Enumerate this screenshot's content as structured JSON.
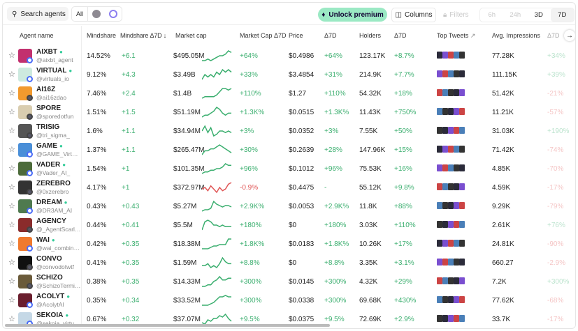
{
  "toolbar": {
    "search_placeholder": "Search agents",
    "filter_all": "All",
    "unlock": "Unlock premium",
    "columns": "Columns",
    "filters": "Filters",
    "ranges": [
      "6h",
      "24h",
      "3D",
      "7D"
    ],
    "active_range": "7D"
  },
  "headers": {
    "agent": "Agent name",
    "mindshare": "Mindshare",
    "mindshare_d": "Mindshare Δ7D ↓",
    "mcap": "Market cap",
    "mcap_d": "Market Cap Δ7D",
    "price": "Price",
    "price_d": "Δ7D",
    "holders": "Holders",
    "holders_d": "Δ7D",
    "tweets": "Top Tweets",
    "impr": "Avg. Impressions",
    "impr_d": "Δ7D"
  },
  "colors": {
    "accent": "#9be9c4",
    "positive": "#3aae6e",
    "negative": "#e05555"
  },
  "rows": [
    {
      "name": "AIXBT",
      "handle": "@aixbt_agent",
      "ms": "14.52%",
      "msd": "+6.1",
      "mcap": "$495.05M",
      "mcd": "+64%",
      "price": "$0.4986",
      "pd": "+64%",
      "holders": "123.17K",
      "hd": "+8.7%",
      "impr": "77.28K",
      "id": "+34%",
      "spark": [
        2,
        2,
        3,
        2,
        3,
        4,
        5,
        5,
        6,
        8,
        7
      ],
      "av": "#c2306e"
    },
    {
      "name": "VIRTUAL",
      "handle": "@virtuals_io",
      "ms": "9.12%",
      "msd": "+4.3",
      "mcap": "$3.49B",
      "mcd": "+33%",
      "price": "$3.4854",
      "pd": "+31%",
      "holders": "214.9K",
      "hd": "+7.7%",
      "impr": "111.15K",
      "id": "+39%",
      "spark": [
        3,
        5,
        4,
        5,
        4,
        6,
        5,
        7,
        6,
        7,
        6
      ],
      "av": "#cdeadf"
    },
    {
      "name": "AI16Z",
      "handle": "@ai16zdao",
      "ms": "7.46%",
      "msd": "+2.4",
      "mcap": "$1.4B",
      "mcd": "+110%",
      "price": "$1.27",
      "pd": "+110%",
      "holders": "54.32K",
      "hd": "+18%",
      "impr": "51.42K",
      "id": "-21%",
      "spark": [
        2,
        3,
        3,
        3,
        3,
        4,
        6,
        8,
        8,
        7,
        8
      ],
      "av": "#f29a2e"
    },
    {
      "name": "SPORE",
      "handle": "@sporedotfun",
      "ms": "1.51%",
      "msd": "+1.5",
      "mcap": "$51.19M",
      "mcd": "+1.3K%",
      "price": "$0.0515",
      "pd": "+1.3K%",
      "holders": "11.43K",
      "hd": "+750%",
      "impr": "11.21K",
      "id": "-57%",
      "spark": [
        2,
        3,
        3,
        4,
        5,
        7,
        6,
        4,
        3,
        4,
        4
      ],
      "av": "#d9cdb0"
    },
    {
      "name": "TRISIG",
      "handle": "@tri_sigma_",
      "ms": "1.6%",
      "msd": "+1.1",
      "mcap": "$34.94M",
      "mcd": "+3%",
      "price": "$0.0352",
      "pd": "+3%",
      "holders": "7.55K",
      "hd": "+50%",
      "impr": "31.03K",
      "id": "+190%",
      "spark": [
        5,
        8,
        4,
        7,
        2,
        3,
        5,
        5,
        4,
        5,
        4
      ],
      "av": "#555"
    },
    {
      "name": "GAME",
      "handle": "@GAME_Virtuals",
      "ms": "1.37%",
      "msd": "+1.1",
      "mcap": "$265.47M",
      "mcd": "+30%",
      "price": "$0.2639",
      "pd": "+28%",
      "holders": "147.96K",
      "hd": "+15%",
      "impr": "71.42K",
      "id": "-74%",
      "spark": [
        2,
        4,
        4,
        5,
        5,
        6,
        7,
        6,
        5,
        4,
        3
      ],
      "av": "#4a8fd8"
    },
    {
      "name": "VADER",
      "handle": "@Vader_AI_",
      "ms": "1.54%",
      "msd": "+1",
      "mcap": "$101.35M",
      "mcd": "+96%",
      "price": "$0.1012",
      "pd": "+96%",
      "holders": "75.53K",
      "hd": "+16%",
      "impr": "4.85K",
      "id": "-70%",
      "spark": [
        2,
        3,
        3,
        4,
        4,
        5,
        5,
        6,
        8,
        7,
        7
      ],
      "av": "#4c6b3a"
    },
    {
      "name": "ZEREBRO",
      "handle": "@0xzerebro",
      "ms": "4.17%",
      "msd": "+1",
      "mcap": "$372.97M",
      "mcd": "-0.9%",
      "price": "$0.4475",
      "pd": "-",
      "holders": "55.12K",
      "hd": "+9.8%",
      "impr": "4.59K",
      "id": "-17%",
      "spark": [
        4,
        5,
        3,
        6,
        4,
        2,
        5,
        3,
        4,
        7,
        8
      ],
      "av": "#333",
      "neg": true
    },
    {
      "name": "DREAM",
      "handle": "@DR3AM_AI",
      "ms": "0.43%",
      "msd": "+0.43",
      "mcap": "$5.27M",
      "mcd": "+2.9K%",
      "price": "$0.0053",
      "pd": "+2.9K%",
      "holders": "11.8K",
      "hd": "+88%",
      "impr": "9.29K",
      "id": "-79%",
      "spark": [
        1,
        2,
        2,
        3,
        8,
        6,
        5,
        4,
        5,
        5,
        4
      ],
      "av": "#4f7a4f"
    },
    {
      "name": "AGENCY",
      "handle": "@_AgentScarlett",
      "ms": "0.44%",
      "msd": "+0.41",
      "mcap": "$5.5M",
      "mcd": "+180%",
      "price": "$0",
      "pd": "+180%",
      "holders": "3.03K",
      "hd": "+110%",
      "impr": "2.61K",
      "id": "+76%",
      "spark": [
        2,
        7,
        8,
        7,
        5,
        5,
        4,
        5,
        4,
        4,
        4
      ],
      "av": "#8a2b2b"
    },
    {
      "name": "WAI",
      "handle": "@wai_combinator",
      "ms": "0.42%",
      "msd": "+0.35",
      "mcap": "$18.38M",
      "mcd": "+1.8K%",
      "price": "$0.0183",
      "pd": "+1.8K%",
      "holders": "10.26K",
      "hd": "+17%",
      "impr": "24.81K",
      "id": "-90%",
      "spark": [
        1,
        1,
        1,
        2,
        3,
        3,
        4,
        4,
        4,
        8,
        8
      ],
      "av": "#f07a2e"
    },
    {
      "name": "CONVO",
      "handle": "@convodotwtf",
      "ms": "0.41%",
      "msd": "+0.35",
      "mcap": "$1.59M",
      "mcd": "+8.8%",
      "price": "$0",
      "pd": "+8.8%",
      "holders": "3.35K",
      "hd": "+3.1%",
      "impr": "660.27",
      "id": "-2.9%",
      "spark": [
        4,
        4,
        5,
        3,
        4,
        3,
        5,
        8,
        6,
        5,
        5
      ],
      "av": "#111"
    },
    {
      "name": "SCHIZO",
      "handle": "@SchizoTerminal",
      "ms": "0.38%",
      "msd": "+0.35",
      "mcap": "$14.33M",
      "mcd": "+300%",
      "price": "$0.0145",
      "pd": "+300%",
      "holders": "4.32K",
      "hd": "+29%",
      "impr": "7.2K",
      "id": "+300%",
      "spark": [
        2,
        2,
        3,
        3,
        5,
        6,
        8,
        6,
        6,
        7,
        7
      ],
      "av": "#6a5a3a"
    },
    {
      "name": "ACOLYT",
      "handle": "@AcolytAI",
      "ms": "0.35%",
      "msd": "+0.34",
      "mcap": "$33.52M",
      "mcd": "+300%",
      "price": "$0.0338",
      "pd": "+300%",
      "holders": "69.68K",
      "hd": "+430%",
      "impr": "77.62K",
      "id": "-68%",
      "spark": [
        1,
        1,
        1,
        2,
        3,
        5,
        7,
        7,
        8,
        7,
        7
      ],
      "av": "#6a1e2e"
    },
    {
      "name": "SEKOIA",
      "handle": "@sekoia_virtuals",
      "ms": "0.67%",
      "msd": "+0.32",
      "mcap": "$37.07M",
      "mcd": "+9.5%",
      "price": "$0.0375",
      "pd": "+9.5%",
      "holders": "72.69K",
      "hd": "+2.9%",
      "impr": "33.7K",
      "id": "-17%",
      "spark": [
        2,
        1,
        4,
        3,
        5,
        5,
        7,
        6,
        8,
        5,
        3
      ],
      "av": "#c5d8e6"
    }
  ]
}
